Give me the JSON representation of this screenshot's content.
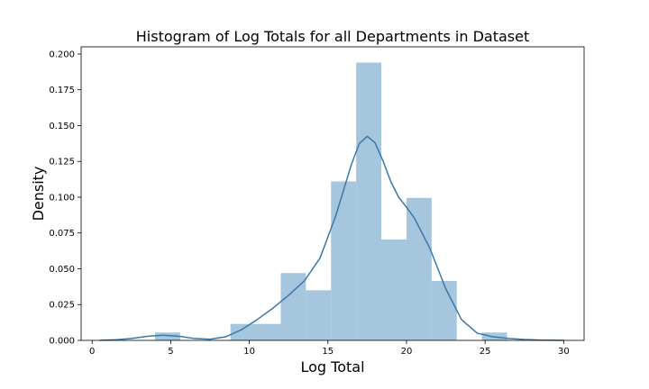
{
  "chart_data": {
    "type": "bar",
    "title": "Histogram of Log Totals for all Departments in Dataset",
    "xlabel": "Log Total",
    "ylabel": "Density",
    "xlim": [
      -0.7,
      31.3
    ],
    "ylim": [
      0,
      0.205
    ],
    "x_ticks": [
      0,
      5,
      10,
      15,
      20,
      25,
      30
    ],
    "y_ticks": [
      0.0,
      0.025,
      0.05,
      0.075,
      0.1,
      0.125,
      0.15,
      0.175,
      0.2
    ],
    "grid": false,
    "legend": false,
    "colors": {
      "bars": "#a6c6de",
      "kde_line": "#3a78a8"
    },
    "bins": [
      {
        "x0": 4.0,
        "x1": 5.6,
        "density": 0.0055
      },
      {
        "x0": 5.6,
        "x1": 7.2,
        "density": 0.0
      },
      {
        "x0": 7.2,
        "x1": 8.8,
        "density": 0.0
      },
      {
        "x0": 8.8,
        "x1": 10.4,
        "density": 0.0115
      },
      {
        "x0": 10.4,
        "x1": 12.0,
        "density": 0.0115
      },
      {
        "x0": 12.0,
        "x1": 13.6,
        "density": 0.047
      },
      {
        "x0": 13.6,
        "x1": 15.2,
        "density": 0.035
      },
      {
        "x0": 15.2,
        "x1": 16.8,
        "density": 0.111
      },
      {
        "x0": 16.8,
        "x1": 18.4,
        "density": 0.194
      },
      {
        "x0": 18.4,
        "x1": 20.0,
        "density": 0.0705
      },
      {
        "x0": 20.0,
        "x1": 21.6,
        "density": 0.0995
      },
      {
        "x0": 21.6,
        "x1": 23.2,
        "density": 0.0415
      },
      {
        "x0": 23.2,
        "x1": 24.8,
        "density": 0.0
      },
      {
        "x0": 24.8,
        "x1": 26.4,
        "density": 0.0055
      }
    ],
    "kde": {
      "x": [
        0.5,
        1.5,
        2.5,
        3.5,
        4.5,
        5.5,
        6.5,
        7.5,
        8.5,
        9.5,
        10.5,
        11.5,
        12.5,
        13.5,
        14.5,
        15.5,
        16.5,
        17.0,
        17.5,
        18.0,
        18.5,
        19.0,
        19.5,
        20.0,
        20.5,
        21.5,
        22.5,
        23.5,
        24.5,
        25.5,
        26.5,
        27.5,
        28.5,
        29.5,
        30.0
      ],
      "y": [
        0.0001,
        0.0004,
        0.0013,
        0.0028,
        0.0036,
        0.0029,
        0.0013,
        0.0008,
        0.0025,
        0.0074,
        0.0145,
        0.0225,
        0.0315,
        0.0415,
        0.0575,
        0.087,
        0.123,
        0.1375,
        0.1425,
        0.138,
        0.1255,
        0.111,
        0.1,
        0.093,
        0.0855,
        0.064,
        0.036,
        0.0145,
        0.005,
        0.0025,
        0.0013,
        0.0006,
        0.0002,
        5e-05,
        0.0
      ]
    }
  }
}
